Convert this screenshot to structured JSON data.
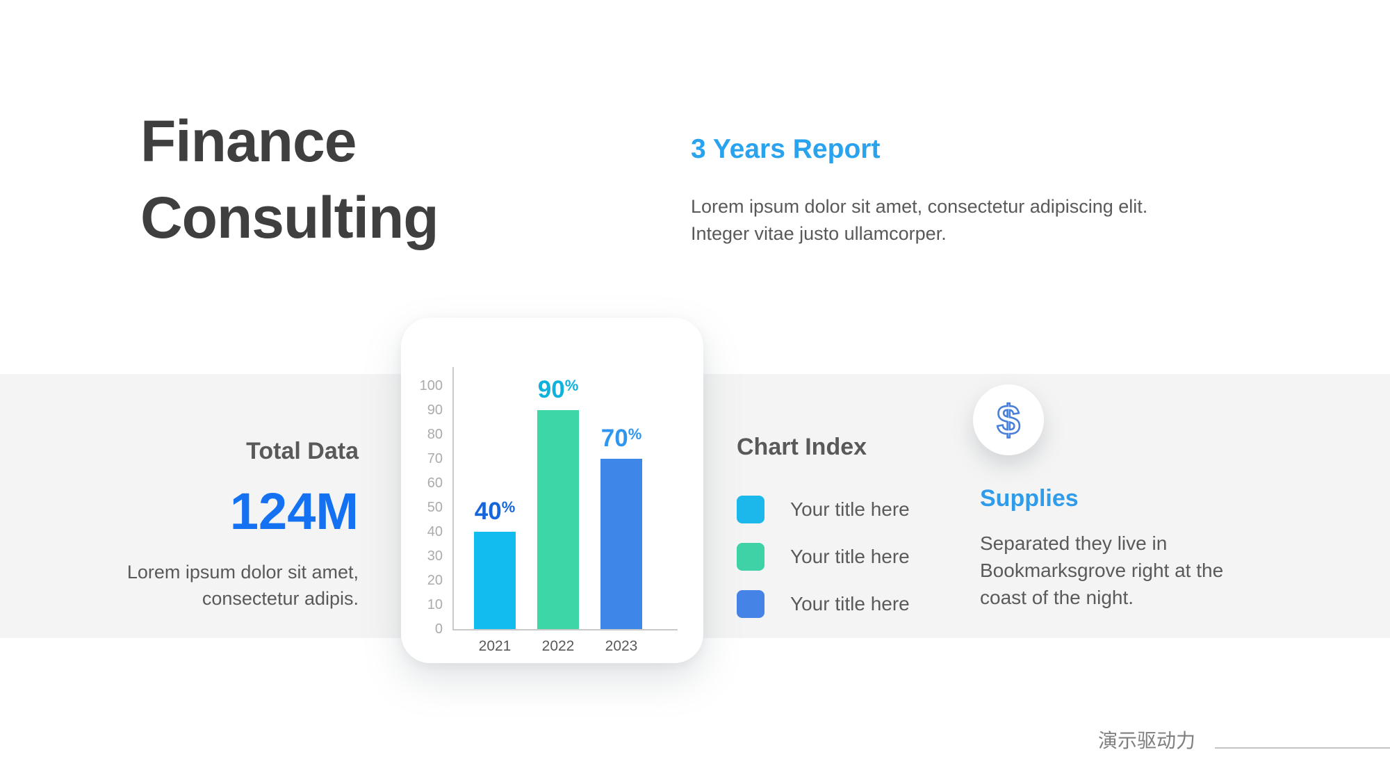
{
  "slide": {
    "title_line1": "Finance",
    "title_line2": "Consulting",
    "report": {
      "heading": "3 Years Report",
      "body_lines": [
        "Lorem ipsum dolor sit amet, consectetur adipiscing elit.",
        "Integer vitae justo ullamcorper."
      ]
    },
    "total_data": {
      "heading": "Total Data",
      "value": "124M",
      "body_lines": [
        "Lorem ipsum dolor sit amet,",
        "consectetur adipis."
      ]
    },
    "chart_index": {
      "heading": "Chart Index",
      "items": [
        {
          "color": "#1CB8EC",
          "label": "Your title here"
        },
        {
          "color": "#3FD2A6",
          "label": "Your title here"
        },
        {
          "color": "#4583E6",
          "label": "Your title here"
        }
      ]
    },
    "supplies": {
      "icon": "dollar-icon",
      "icon_glyph": "$",
      "icon_color": "#4A7FD9",
      "heading": "Supplies",
      "body_lines": [
        "Separated they live in",
        "Bookmarksgrove right at the",
        "coast of the night."
      ]
    },
    "footer": {
      "brand": "演示驱动力"
    }
  },
  "chart_data": {
    "type": "bar",
    "categories": [
      "2021",
      "2022",
      "2023"
    ],
    "values": [
      40,
      90,
      70
    ],
    "data_labels": [
      "40%",
      "90%",
      "70%"
    ],
    "bar_colors": [
      "#12BCEE",
      "#3DD6A6",
      "#3E86E8"
    ],
    "label_colors": [
      "#1565DB",
      "#0FB2DC",
      "#2F96F0"
    ],
    "title": "",
    "xlabel": "",
    "ylabel": "",
    "ylim": [
      0,
      100
    ],
    "ytick_step": 10,
    "grid": false,
    "legend_position": "separate-chart-index-panel"
  },
  "colors": {
    "title_text": "#3F3F3F",
    "body_text": "#595959",
    "report_heading": "#29A3EE",
    "total_value": "#1472F2",
    "supplies_heading": "#2E9CEB",
    "band_background": "#F4F4F4",
    "axis": "#C9C9C9",
    "tick_text": "#ABABAB",
    "footer_text": "#7F7F7F"
  }
}
